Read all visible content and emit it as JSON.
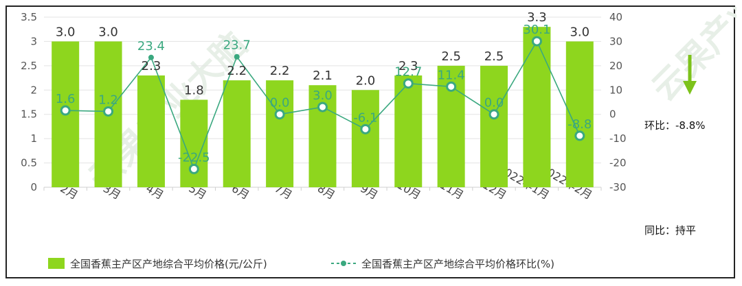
{
  "chart_data": {
    "type": "bar",
    "categories": [
      "2月",
      "3月",
      "4月",
      "5月",
      "6月",
      "7月",
      "8月",
      "9月",
      "10月",
      "11月",
      "12月",
      "2022年1月",
      "2022年2月"
    ],
    "series": [
      {
        "name": "全国香蕉主产区产地综合平均价格(元/公斤)",
        "type": "bar",
        "axis": "left",
        "values": [
          3.0,
          3.0,
          2.3,
          1.8,
          2.2,
          2.2,
          2.1,
          2.0,
          2.3,
          2.5,
          2.5,
          3.3,
          3.0
        ]
      },
      {
        "name": "全国香蕉主产区产地综合平均价格环比(%)",
        "type": "line",
        "axis": "right",
        "values": [
          1.6,
          1.2,
          23.4,
          -22.5,
          23.7,
          0.0,
          3.0,
          -6.1,
          12.7,
          11.4,
          0.0,
          30.1,
          -8.8
        ]
      }
    ],
    "ylim_left": [
      0,
      3.5
    ],
    "yticks_left": [
      "0",
      "0.5",
      "1",
      "1.5",
      "2",
      "2.5",
      "3",
      "3.5"
    ],
    "ylim_right": [
      -30,
      40
    ],
    "yticks_right": [
      "-30",
      "-20",
      "-10",
      "0",
      "10",
      "20",
      "30",
      "40"
    ],
    "bar_labels": [
      "3.0",
      "3.0",
      "2.3",
      "1.8",
      "2.2",
      "2.2",
      "2.1",
      "2.0",
      "2.3",
      "2.5",
      "2.5",
      "3.3",
      "3.0"
    ],
    "line_labels": [
      "1.6",
      "1.2",
      "23.4",
      "-22.5",
      "23.7",
      "0.0",
      "3.0",
      "-6.1",
      "12.7",
      "11.4",
      "0.0",
      "30.1",
      "-8.8"
    ],
    "grid": true,
    "legend": "bottom-left",
    "colors": {
      "bar": "#8ed61e",
      "line": "#3aa87f",
      "arrow": "#7cc21a"
    }
  },
  "side_notes": {
    "mom": "环比：-8.8%",
    "yoy": "同比：持平"
  },
  "watermark": "云果产业大脑"
}
